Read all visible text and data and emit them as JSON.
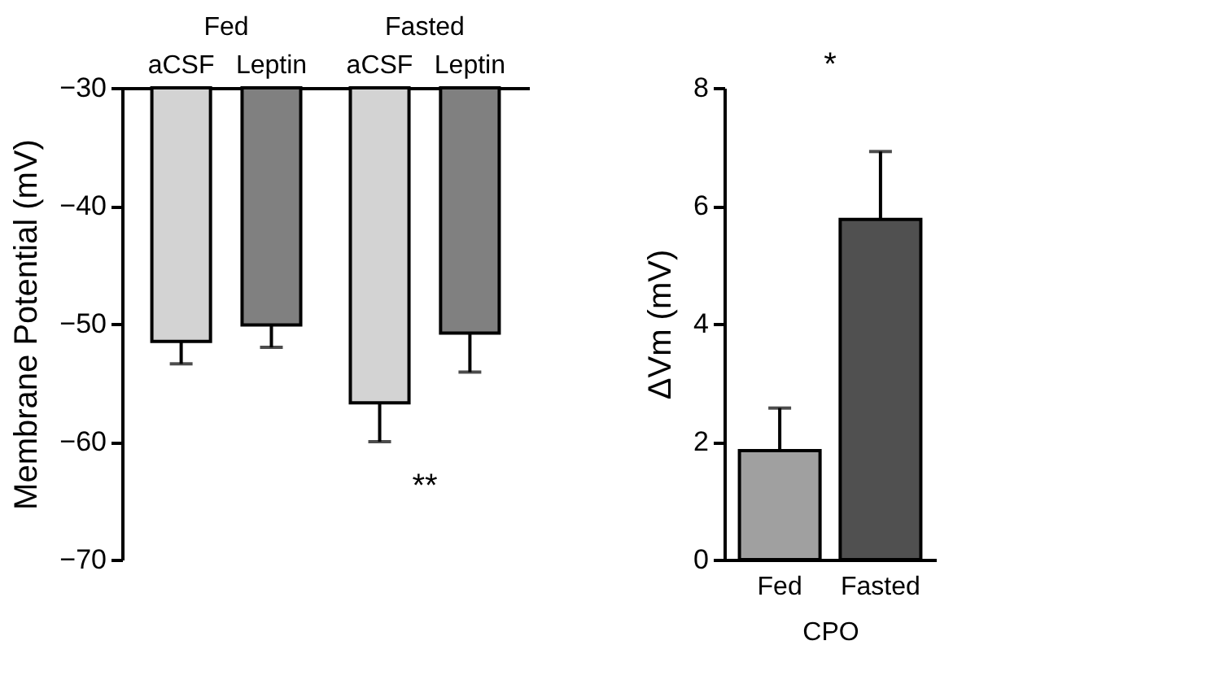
{
  "chart_data": [
    {
      "type": "bar",
      "ylabel": "Membrane Potential (mV)",
      "categories": [
        "Fed",
        "Fasted"
      ],
      "ylim": [
        -70,
        -30
      ],
      "yticks": [
        -70,
        -60,
        -50,
        -40,
        -30
      ],
      "series": [
        {
          "name": "aCSF",
          "color": "#d3d3d3",
          "base": [
            -30,
            -30
          ],
          "values": [
            -21.5,
            -26.7
          ],
          "errors": [
            [
              -53.4,
              -51.5
            ],
            [
              -60.0,
              -56.7
            ]
          ]
        },
        {
          "name": "Leptin",
          "color": "#808080",
          "base": [
            -30,
            -30
          ],
          "values": [
            -20.1,
            -20.8
          ],
          "errors": [
            [
              -52.0,
              -50.1
            ],
            [
              -54.1,
              -50.8
            ]
          ]
        }
      ],
      "annotations": [
        "**"
      ],
      "grid": false
    },
    {
      "type": "bar",
      "ylabel": "ΔVm (mV)",
      "xlabel": "CPO",
      "categories": [
        "Fed",
        "Fasted"
      ],
      "values": [
        1.85,
        5.77
      ],
      "colors": [
        "#a0a0a0",
        "#505050"
      ],
      "errors": [
        [
          1.85,
          2.57
        ],
        [
          5.77,
          6.92
        ]
      ],
      "ylim": [
        0,
        8
      ],
      "yticks": [
        0,
        2,
        4,
        6,
        8
      ],
      "annotations": [
        "*"
      ],
      "grid": false
    }
  ]
}
